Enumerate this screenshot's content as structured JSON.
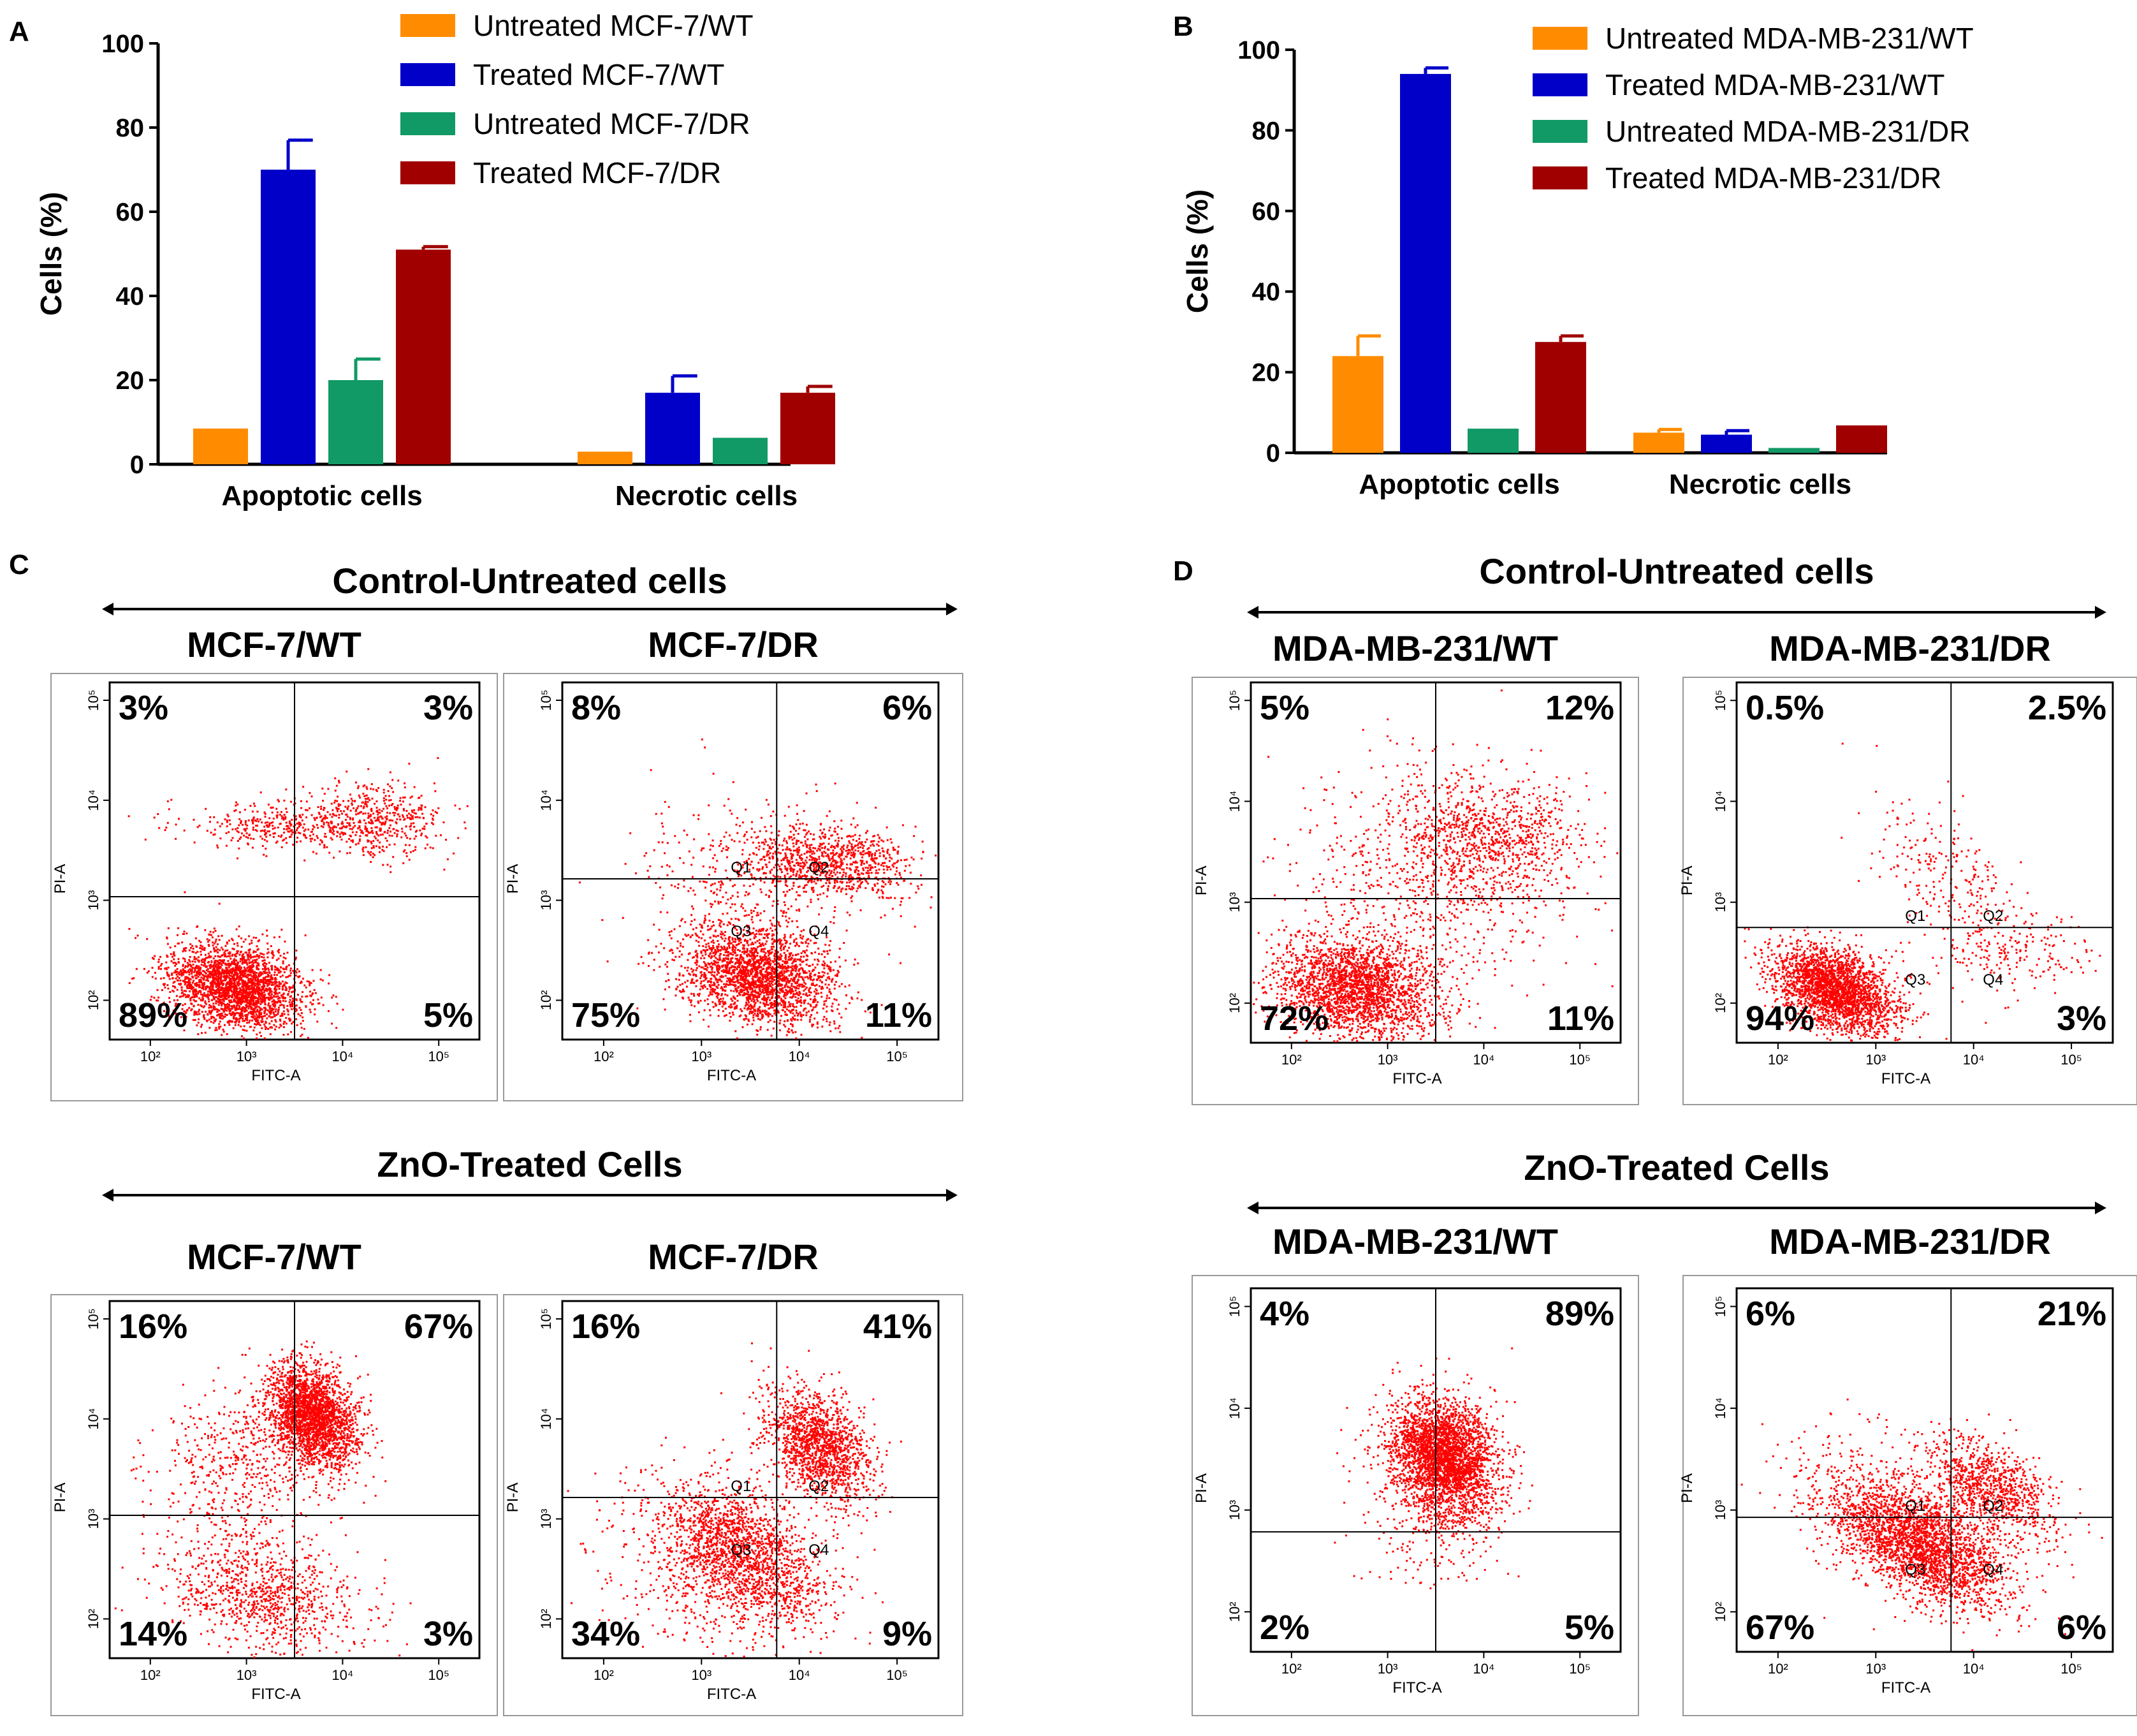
{
  "chart_data": [
    {
      "type": "bar",
      "panel_label": "A",
      "ylabel": "Cells (%)",
      "ylim": [
        0,
        100
      ],
      "yticks": [
        "0",
        "20",
        "40",
        "60",
        "80",
        "100"
      ],
      "categories": [
        "Apoptotic cells",
        "Necrotic cells"
      ],
      "series": [
        {
          "name": "Untreated MCF-7/WT",
          "color": "#ff8c00",
          "values": [
            8.5,
            3
          ],
          "errors": [
            0,
            0
          ]
        },
        {
          "name": "Treated MCF-7/WT",
          "color": "#0000c8",
          "values": [
            70,
            17
          ],
          "errors": [
            7,
            4
          ]
        },
        {
          "name": "Untreated MCF-7/DR",
          "color": "#119966",
          "values": [
            20,
            6.3
          ],
          "errors": [
            5,
            0
          ]
        },
        {
          "name": "Treated MCF-7/DR",
          "color": "#a00000",
          "values": [
            51,
            17
          ],
          "errors": [
            0.7,
            1.5
          ]
        }
      ]
    },
    {
      "type": "bar",
      "panel_label": "B",
      "ylabel": "Cells (%)",
      "ylim": [
        0,
        100
      ],
      "yticks": [
        "0",
        "20",
        "40",
        "60",
        "80",
        "100"
      ],
      "categories": [
        "Apoptotic cells",
        "Necrotic cells"
      ],
      "series": [
        {
          "name": "Untreated MDA-MB-231/WT",
          "color": "#ff8c00",
          "values": [
            24,
            5
          ],
          "errors": [
            5,
            0.8
          ]
        },
        {
          "name": "Treated MDA-MB-231/WT",
          "color": "#0000c8",
          "values": [
            94,
            4.5
          ],
          "errors": [
            1.5,
            1
          ]
        },
        {
          "name": "Untreated MDA-MB-231/DR",
          "color": "#119966",
          "values": [
            6,
            1.2
          ],
          "errors": [
            0,
            0
          ]
        },
        {
          "name": "Treated MDA-MB-231/DR",
          "color": "#a00000",
          "values": [
            27.5,
            6.8
          ],
          "errors": [
            1.5,
            0
          ]
        }
      ]
    },
    {
      "type": "scatter",
      "panel_label": "C",
      "xlabel": "FITC-A",
      "ylabel": "PI-A",
      "axis_scale": "log",
      "groups": [
        {
          "title": "Control-Untreated cells",
          "plots": [
            {
              "title": "MCF-7/WT",
              "quadrants": {
                "ul": "3%",
                "ur": "3%",
                "ll": "89%",
                "lr": "5%"
              },
              "gate_labels": false
            },
            {
              "title": "MCF-7/DR",
              "quadrants": {
                "ul": "8%",
                "ur": "6%",
                "ll": "75%",
                "lr": "11%"
              },
              "gate_labels": true
            }
          ]
        },
        {
          "title": "ZnO-Treated Cells",
          "plots": [
            {
              "title": "MCF-7/WT",
              "quadrants": {
                "ul": "16%",
                "ur": "67%",
                "ll": "14%",
                "lr": "3%"
              },
              "gate_labels": false
            },
            {
              "title": "MCF-7/DR",
              "quadrants": {
                "ul": "16%",
                "ur": "41%",
                "ll": "34%",
                "lr": "9%"
              },
              "gate_labels": true
            }
          ]
        }
      ]
    },
    {
      "type": "scatter",
      "panel_label": "D",
      "xlabel": "FITC-A",
      "ylabel": "PI-A",
      "axis_scale": "log",
      "groups": [
        {
          "title": "Control-Untreated cells",
          "plots": [
            {
              "title": "MDA-MB-231/WT",
              "quadrants": {
                "ul": "5%",
                "ur": "12%",
                "ll": "72%",
                "lr": "11%"
              },
              "gate_labels": false
            },
            {
              "title": "MDA-MB-231/DR",
              "quadrants": {
                "ul": "0.5%",
                "ur": "2.5%",
                "ll": "94%",
                "lr": "3%"
              },
              "gate_labels": true
            }
          ]
        },
        {
          "title": "ZnO-Treated Cells",
          "plots": [
            {
              "title": "MDA-MB-231/WT",
              "quadrants": {
                "ul": "4%",
                "ur": "89%",
                "ll": "2%",
                "lr": "5%"
              },
              "gate_labels": false
            },
            {
              "title": "MDA-MB-231/DR",
              "quadrants": {
                "ul": "6%",
                "ur": "21%",
                "ll": "67%",
                "lr": "6%"
              },
              "gate_labels": true
            }
          ]
        }
      ]
    }
  ],
  "flow_axis": {
    "x_ticks": [
      "10²",
      "10³",
      "10⁴",
      "10⁵"
    ],
    "y_ticks": [
      "10²",
      "10³",
      "10⁴",
      "10⁵"
    ],
    "gate_names": [
      "Q1",
      "Q2",
      "Q3",
      "Q4"
    ]
  },
  "colors": {
    "dots": "#ff0000",
    "axis": "#000000",
    "frame": "#999999"
  }
}
